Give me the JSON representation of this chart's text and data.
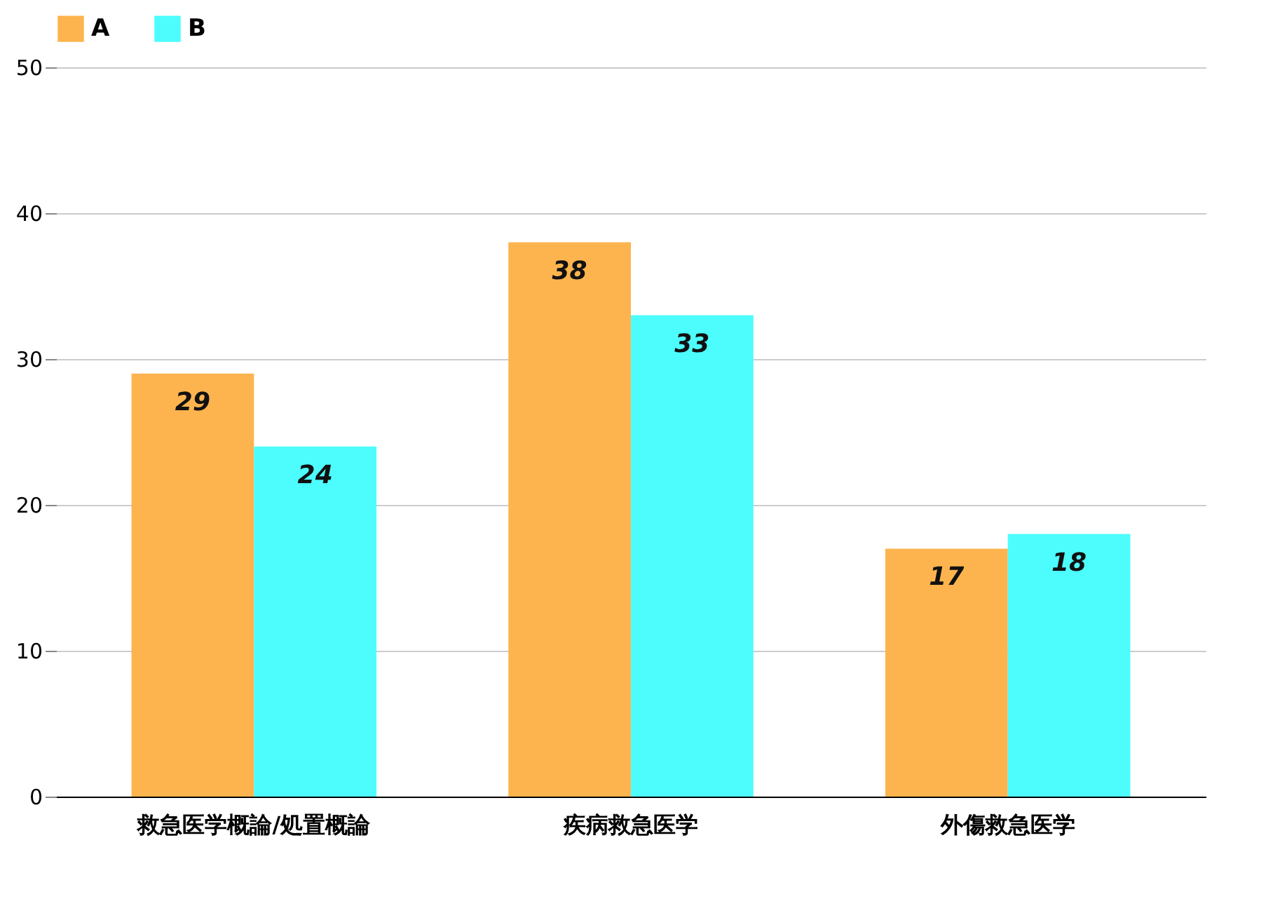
{
  "chart_data": {
    "type": "bar",
    "categories": [
      "救急医学概論/処置概論",
      "疾病救急医学",
      "外傷救急医学"
    ],
    "series": [
      {
        "name": "A",
        "color": "#fdb44e",
        "values": [
          29,
          38,
          17
        ]
      },
      {
        "name": "B",
        "color": "#4dfdfd",
        "values": [
          24,
          33,
          18
        ]
      }
    ],
    "ylim": [
      0,
      50
    ],
    "yticks": [
      0,
      10,
      20,
      30,
      40,
      50
    ],
    "grid": true,
    "legend": "top",
    "data_labels": true
  }
}
